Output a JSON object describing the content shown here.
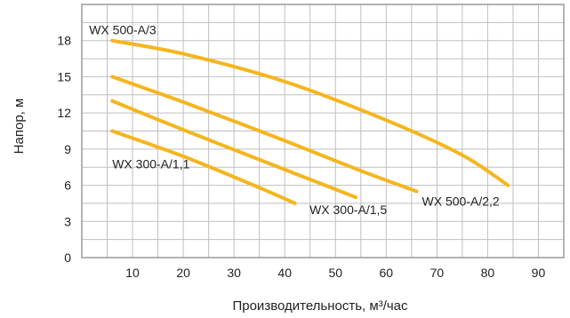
{
  "chart_data": {
    "type": "line",
    "xlabel": "Производительность, м³/час",
    "ylabel": "Напор, м",
    "xlim": [
      0,
      95
    ],
    "ylim": [
      0,
      21
    ],
    "xticks": [
      "10",
      "20",
      "30",
      "40",
      "50",
      "60",
      "70",
      "80",
      "90"
    ],
    "yticks": [
      "0",
      "3",
      "6",
      "9",
      "12",
      "15",
      "18"
    ],
    "grid": true,
    "series_color": "#F5B51E",
    "series": [
      {
        "name": "WX 500-A/3",
        "points": [
          [
            6,
            18
          ],
          [
            20,
            16.9
          ],
          [
            40,
            14.6
          ],
          [
            60,
            11.4
          ],
          [
            75,
            8.5
          ],
          [
            84,
            6
          ]
        ]
      },
      {
        "name": "WX 500-A/2,2",
        "points": [
          [
            6,
            15
          ],
          [
            20,
            12.9
          ],
          [
            40,
            9.7
          ],
          [
            55,
            7.2
          ],
          [
            66,
            5.5
          ]
        ]
      },
      {
        "name": "WX 300-A/1,5",
        "points": [
          [
            6,
            13
          ],
          [
            20,
            10.6
          ],
          [
            40,
            7.3
          ],
          [
            54,
            5
          ]
        ]
      },
      {
        "name": "WX 300-A/1,1",
        "points": [
          [
            6,
            10.5
          ],
          [
            20,
            8.4
          ],
          [
            35,
            5.8
          ],
          [
            42,
            4.5
          ]
        ]
      }
    ]
  }
}
